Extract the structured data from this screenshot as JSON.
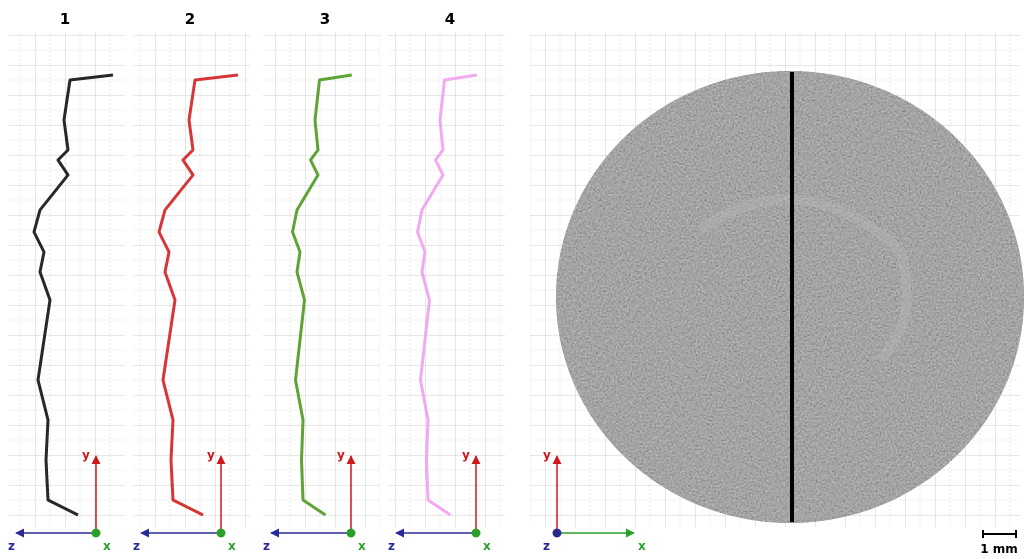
{
  "panels": [
    {
      "label": "1",
      "color": "#111111"
    },
    {
      "label": "2",
      "color": "#d42020"
    },
    {
      "label": "3",
      "color": "#4c9a1e"
    },
    {
      "label": "4",
      "color": "#f0a0f0"
    }
  ],
  "axes": {
    "x": "x",
    "y": "y",
    "z": "z"
  },
  "scale_bar": "1 mm"
}
